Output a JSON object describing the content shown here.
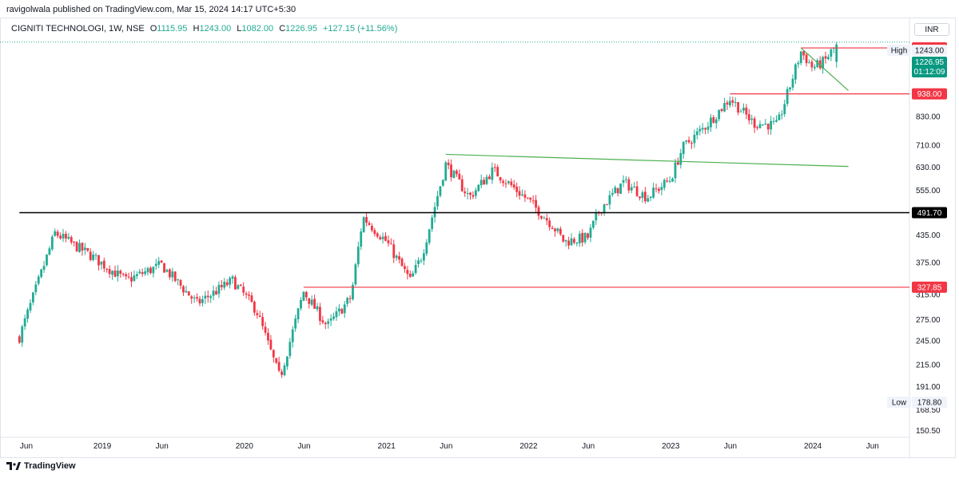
{
  "header": {
    "published_text": "ravigolwala published on TradingView.com, Mar 15, 2024 14:17 UTC+5:30"
  },
  "legend": {
    "symbol": "CIGNITI TECHNOLOGI, 1W, NSE",
    "o_label": "O",
    "o_value": "1115.95",
    "h_label": "H",
    "h_value": "1243.00",
    "l_label": "L",
    "l_value": "1082.00",
    "c_label": "C",
    "c_value": "1226.95",
    "change": "+127.15 (+11.56%)"
  },
  "currency": "INR",
  "footer": {
    "brand": "TradingView"
  },
  "colors": {
    "up": "#22ab94",
    "down": "#f23645",
    "trendline": "#4caf50",
    "level_line": "#f23645",
    "support_line": "#000000",
    "price_badge": "#089981"
  },
  "chart_data": {
    "type": "candlestick",
    "y_scale": "log",
    "ylim": [
      145,
      1420
    ],
    "x_ticks": [
      "Jun",
      "2019",
      "Jun",
      "2020",
      "Jun",
      "2021",
      "Jun",
      "2022",
      "Jun",
      "2023",
      "Jun",
      "2024",
      "Jun"
    ],
    "y_ticks": [
      "830.00",
      "710.00",
      "630.00",
      "555.00",
      "435.00",
      "375.00",
      "315.00",
      "275.00",
      "245.00",
      "215.00",
      "191.00",
      "168.50",
      "150.50"
    ],
    "high": {
      "label": "High",
      "value": "1243.00"
    },
    "low": {
      "label": "Low",
      "value": "178.80"
    },
    "last_price": {
      "value": "1226.95",
      "countdown": "01:12:09"
    },
    "levels": [
      {
        "value": "1204.00",
        "color": "#f23645",
        "start": "Dec 2023"
      },
      {
        "value": "938.00",
        "color": "#f23645",
        "start": "Jun 2023"
      },
      {
        "value": "491.70",
        "color": "#000000",
        "start": "Jun 2018"
      },
      {
        "value": "327.85",
        "color": "#f23645",
        "start": "Jun 2020"
      }
    ],
    "trendlines": [
      {
        "from": {
          "date": "Jun 2021",
          "price": 675
        },
        "to": {
          "date": "Apr 2024",
          "price": 632
        }
      },
      {
        "from": {
          "date": "Dec 2023",
          "price": 1204
        },
        "to": {
          "date": "Apr 2024",
          "price": 955
        }
      }
    ],
    "anchors": [
      {
        "date": "Jun 2018",
        "price": 250
      },
      {
        "date": "Sep 2018",
        "price": 440
      },
      {
        "date": "Dec 2018",
        "price": 390
      },
      {
        "date": "Mar 2019",
        "price": 340
      },
      {
        "date": "Jun 2019",
        "price": 370
      },
      {
        "date": "Sep 2019",
        "price": 300
      },
      {
        "date": "Dec 2019",
        "price": 340
      },
      {
        "date": "Feb 2020",
        "price": 290
      },
      {
        "date": "Apr 2020",
        "price": 200
      },
      {
        "date": "Jun 2020",
        "price": 320
      },
      {
        "date": "Aug 2020",
        "price": 265
      },
      {
        "date": "Oct 2020",
        "price": 310
      },
      {
        "date": "Nov 2020",
        "price": 480
      },
      {
        "date": "Jan 2021",
        "price": 420
      },
      {
        "date": "Mar 2021",
        "price": 340
      },
      {
        "date": "Apr 2021",
        "price": 390
      },
      {
        "date": "Jun 2021",
        "price": 640
      },
      {
        "date": "Aug 2021",
        "price": 535
      },
      {
        "date": "Oct 2021",
        "price": 620
      },
      {
        "date": "Jan 2022",
        "price": 525
      },
      {
        "date": "Mar 2022",
        "price": 460
      },
      {
        "date": "Apr 2022",
        "price": 420
      },
      {
        "date": "Jun 2022",
        "price": 430
      },
      {
        "date": "Jul 2022",
        "price": 500
      },
      {
        "date": "Sep 2022",
        "price": 580
      },
      {
        "date": "Nov 2022",
        "price": 535
      },
      {
        "date": "Jan 2023",
        "price": 590
      },
      {
        "date": "Feb 2023",
        "price": 700
      },
      {
        "date": "Apr 2023",
        "price": 790
      },
      {
        "date": "Jun 2023",
        "price": 915
      },
      {
        "date": "Aug 2023",
        "price": 800
      },
      {
        "date": "Oct 2023",
        "price": 790
      },
      {
        "date": "Dec 2023",
        "price": 1180
      },
      {
        "date": "Jan 2024",
        "price": 1080
      },
      {
        "date": "Feb 2024",
        "price": 1120
      },
      {
        "date": "Mar 2024",
        "price": 1226.95
      }
    ]
  }
}
